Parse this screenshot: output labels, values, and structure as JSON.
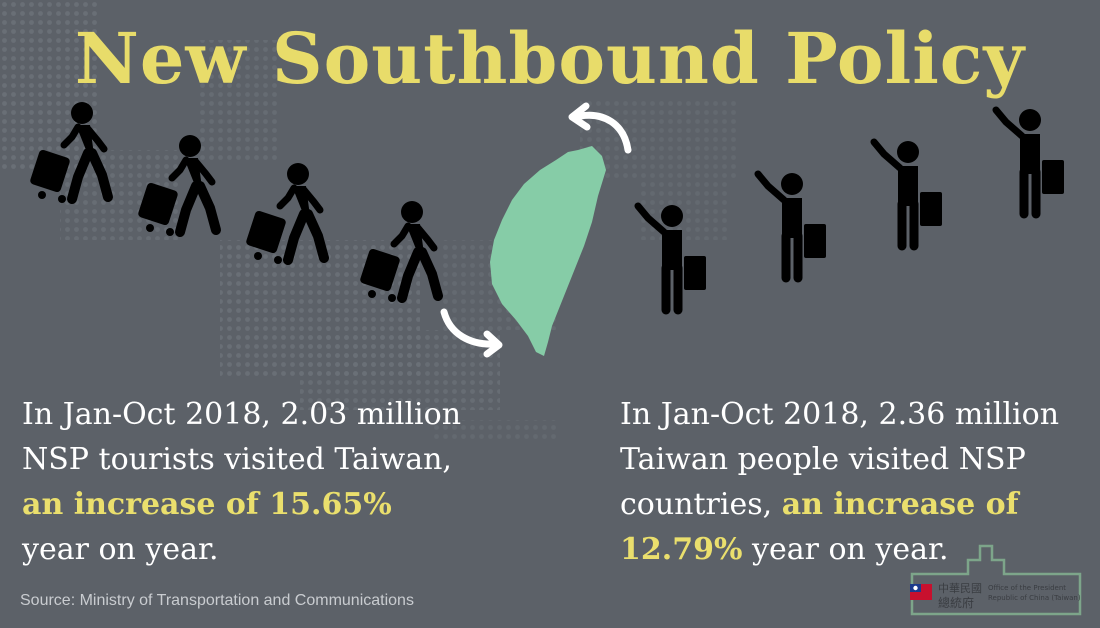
{
  "title": "New Southbound Policy",
  "left_text": {
    "line1": "In Jan-Oct 2018, 2.03 million",
    "line2": "NSP tourists visited Taiwan,",
    "highlight": "an increase of 15.65%",
    "line4": "year on year."
  },
  "right_text": {
    "line1": "In Jan-Oct 2018, 2.36 million",
    "line2": "Taiwan people visited NSP",
    "line3_plain": "countries, ",
    "line3_highlight": "an increase of",
    "line4_highlight": "12.79%",
    "line4_plain": " year on year."
  },
  "source": "Source: Ministry of Transportation and Communications",
  "logo": {
    "chinese_line1": "中華民國",
    "chinese_line2": "總統府",
    "english_line1": "Office of the President",
    "english_line2": "Republic of China (Taiwan)"
  },
  "colors": {
    "background": "#5c6168",
    "title": "#e8dc6a",
    "highlight": "#eadf6d",
    "taiwan": "#86cca7",
    "figure": "#000000"
  },
  "icons": [
    "walking-traveler-icon",
    "waving-traveler-icon",
    "taiwan-map-icon",
    "curved-arrow-icon"
  ]
}
